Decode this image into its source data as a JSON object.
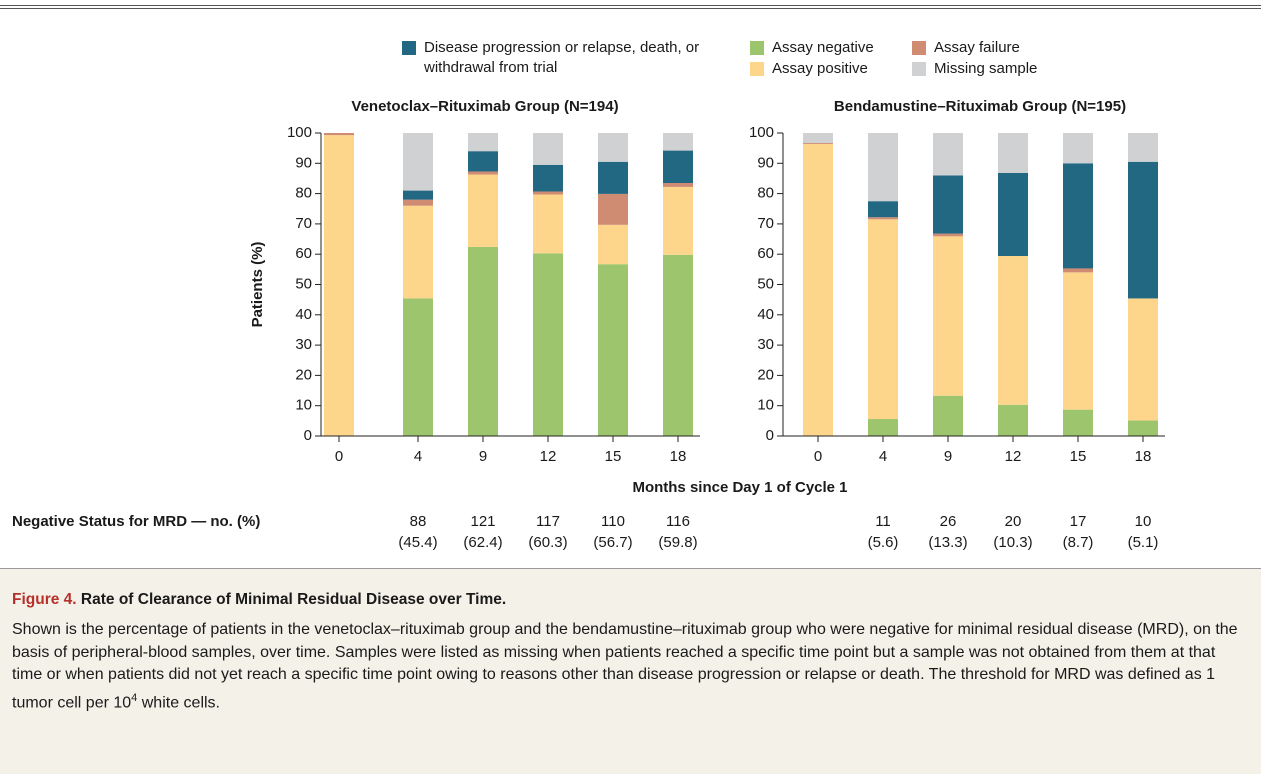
{
  "chart_data": [
    {
      "type": "bar",
      "stacked": true,
      "title": "Venetoclax–Rituximab Group (N=194)",
      "ylabel": "Patients (%)",
      "xlabel": "Months since Day 1 of Cycle 1",
      "categories": [
        "0",
        "4",
        "9",
        "12",
        "15",
        "18"
      ],
      "series": [
        {
          "name": "Assay negative",
          "color": "#9dc56d",
          "values": [
            0,
            45.4,
            62.4,
            60.3,
            56.7,
            59.8
          ]
        },
        {
          "name": "Assay positive",
          "color": "#fdd68c",
          "values": [
            99.3,
            30.6,
            23.9,
            19.4,
            13,
            22.4
          ]
        },
        {
          "name": "Assay failure",
          "color": "#d08b73",
          "values": [
            0.7,
            2,
            1,
            1,
            10.2,
            1.3
          ]
        },
        {
          "name": "Disease progression or relapse, death, or withdrawal from trial",
          "color": "#226882",
          "values": [
            0,
            3,
            6.7,
            8.8,
            10.6,
            10.7
          ]
        },
        {
          "name": "Missing sample",
          "color": "#d0d1d3",
          "values": [
            0,
            19,
            6,
            10.5,
            9.5,
            5.8
          ]
        }
      ],
      "ylim": [
        0,
        100
      ],
      "yticks": [
        0,
        10,
        20,
        30,
        40,
        50,
        60,
        70,
        80,
        90,
        100
      ]
    },
    {
      "type": "bar",
      "stacked": true,
      "title": "Bendamustine–Rituximab Group (N=195)",
      "categories": [
        "0",
        "4",
        "9",
        "12",
        "15",
        "18"
      ],
      "series": [
        {
          "values": [
            0,
            5.6,
            13.3,
            10.3,
            8.7,
            5.1
          ]
        },
        {
          "values": [
            96.4,
            65.9,
            52.6,
            49.1,
            45.3,
            40.3
          ]
        },
        {
          "values": [
            0.3,
            0.7,
            0.9,
            0,
            1.3,
            0
          ]
        },
        {
          "values": [
            0,
            5.3,
            19.2,
            27.4,
            34.7,
            45.1
          ]
        },
        {
          "values": [
            3.3,
            22.5,
            14,
            13.2,
            10,
            9.5
          ]
        }
      ],
      "ylim": [
        0,
        100
      ],
      "yticks": [
        0,
        10,
        20,
        30,
        40,
        50,
        60,
        70,
        80,
        90,
        100
      ]
    }
  ],
  "mrd_table": {
    "label": "Negative Status for MRD — no. (%)",
    "groups": [
      [
        {
          "n": 88,
          "pct": "(45.4)"
        },
        {
          "n": 121,
          "pct": "(62.4)"
        },
        {
          "n": 117,
          "pct": "(60.3)"
        },
        {
          "n": 110,
          "pct": "(56.7)"
        },
        {
          "n": 116,
          "pct": "(59.8)"
        }
      ],
      [
        {
          "n": 11,
          "pct": "(5.6)"
        },
        {
          "n": 26,
          "pct": "(13.3)"
        },
        {
          "n": 20,
          "pct": "(10.3)"
        },
        {
          "n": 17,
          "pct": "(8.7)"
        },
        {
          "n": 10,
          "pct": "(5.1)"
        }
      ]
    ]
  },
  "caption": {
    "label": "Figure 4.",
    "title": "Rate of Clearance of Minimal Residual Disease over Time.",
    "body": "Shown is the percentage of patients in the venetoclax–rituximab group and the bendamustine–rituximab group who were negative for minimal residual disease (MRD), on the basis of peripheral-blood samples, over time. Samples were listed as missing when patients reached a specific time point but a sample was not obtained from them at that time or when patients did not yet reach a specific time point owing to reasons other than disease progression or relapse or death. The threshold for MRD was defined as 1 tumor cell per 10",
    "superscript": "4",
    "body_end": " white cells."
  }
}
